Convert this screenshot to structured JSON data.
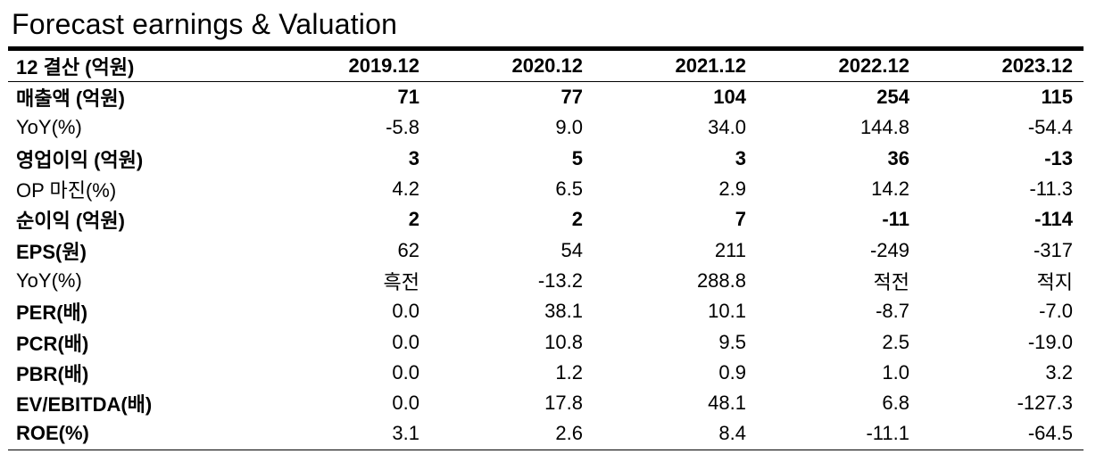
{
  "title": "Forecast earnings & Valuation",
  "table": {
    "header_label": "12 결산 (억원)",
    "years": [
      "2019.12",
      "2020.12",
      "2021.12",
      "2022.12",
      "2023.12"
    ],
    "rows": [
      {
        "label": "매출액 (억원)",
        "style": "bold",
        "values": [
          "71",
          "77",
          "104",
          "254",
          "115"
        ]
      },
      {
        "label": "YoY(%)",
        "style": "normal",
        "values": [
          "-5.8",
          "9.0",
          "34.0",
          "144.8",
          "-54.4"
        ]
      },
      {
        "label": "영업이익 (억원)",
        "style": "bold",
        "values": [
          "3",
          "5",
          "3",
          "36",
          "-13"
        ]
      },
      {
        "label": "OP 마진(%)",
        "style": "normal",
        "values": [
          "4.2",
          "6.5",
          "2.9",
          "14.2",
          "-11.3"
        ]
      },
      {
        "label": "순이익 (억원)",
        "style": "bold",
        "values": [
          "2",
          "2",
          "7",
          "-11",
          "-114"
        ]
      },
      {
        "label": "EPS(원)",
        "style": "labelbold",
        "values": [
          "62",
          "54",
          "211",
          "-249",
          "-317"
        ]
      },
      {
        "label": "YoY(%)",
        "style": "normal",
        "values": [
          "흑전",
          "-13.2",
          "288.8",
          "적전",
          "적지"
        ]
      },
      {
        "label": "PER(배)",
        "style": "labelbold",
        "values": [
          "0.0",
          "38.1",
          "10.1",
          "-8.7",
          "-7.0"
        ]
      },
      {
        "label": "PCR(배)",
        "style": "labelbold",
        "values": [
          "0.0",
          "10.8",
          "9.5",
          "2.5",
          "-19.0"
        ]
      },
      {
        "label": "PBR(배)",
        "style": "labelbold",
        "values": [
          "0.0",
          "1.2",
          "0.9",
          "1.0",
          "3.2"
        ]
      },
      {
        "label": "EV/EBITDA(배)",
        "style": "labelbold",
        "values": [
          "0.0",
          "17.8",
          "48.1",
          "6.8",
          "-127.3"
        ]
      },
      {
        "label": "ROE(%)",
        "style": "labelbold",
        "values": [
          "3.1",
          "2.6",
          "8.4",
          "-11.1",
          "-64.5"
        ]
      }
    ]
  }
}
